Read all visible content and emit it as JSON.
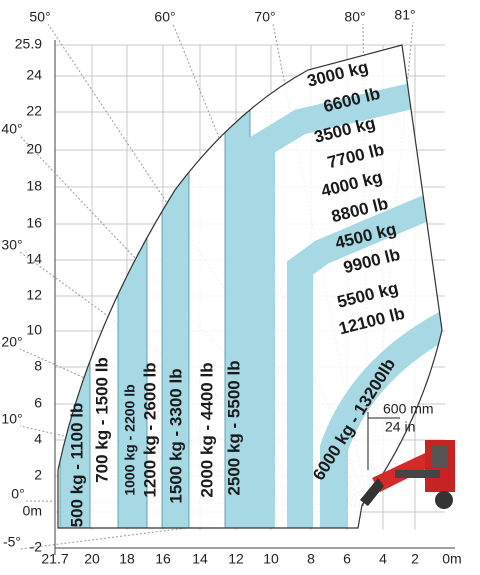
{
  "angle_labels": [
    "50°",
    "60°",
    "70°",
    "80°",
    "81°",
    "40°",
    "30°",
    "20°",
    "10°",
    "0°",
    "-5°"
  ],
  "y_axis": {
    "labels": [
      "25.9",
      "24",
      "22",
      "20",
      "18",
      "16",
      "14",
      "12",
      "10",
      "8",
      "6",
      "4",
      "2",
      "0m",
      "-2"
    ]
  },
  "x_axis": {
    "labels": [
      "21.7",
      "20",
      "18",
      "16",
      "14",
      "12",
      "10",
      "8",
      "6",
      "4",
      "2",
      "0m"
    ]
  },
  "vertical_zones": [
    "500 kg - 1100 lb",
    "700 kg - 1500 lb",
    "1000 kg - 2200 lb",
    "1200 kg - 2600 lb",
    "1500 kg - 3300 lb",
    "2000 kg - 4400 lb",
    "2500 kg - 5500 lb"
  ],
  "arc_zones": [
    {
      "kg": "3000 kg",
      "lb": "6600 lb"
    },
    {
      "kg": "3500 kg",
      "lb": "7700 lb"
    },
    {
      "kg": "4000 kg",
      "lb": "8800 lb"
    },
    {
      "kg": "4500 kg",
      "lb": "9900 lb"
    },
    {
      "kg": "5500 kg",
      "lb": "12100 lb"
    }
  ],
  "bottom_zone": "6000 kg - 13200lb",
  "dimension": {
    "mm": "600 mm",
    "in": "24 in"
  }
}
